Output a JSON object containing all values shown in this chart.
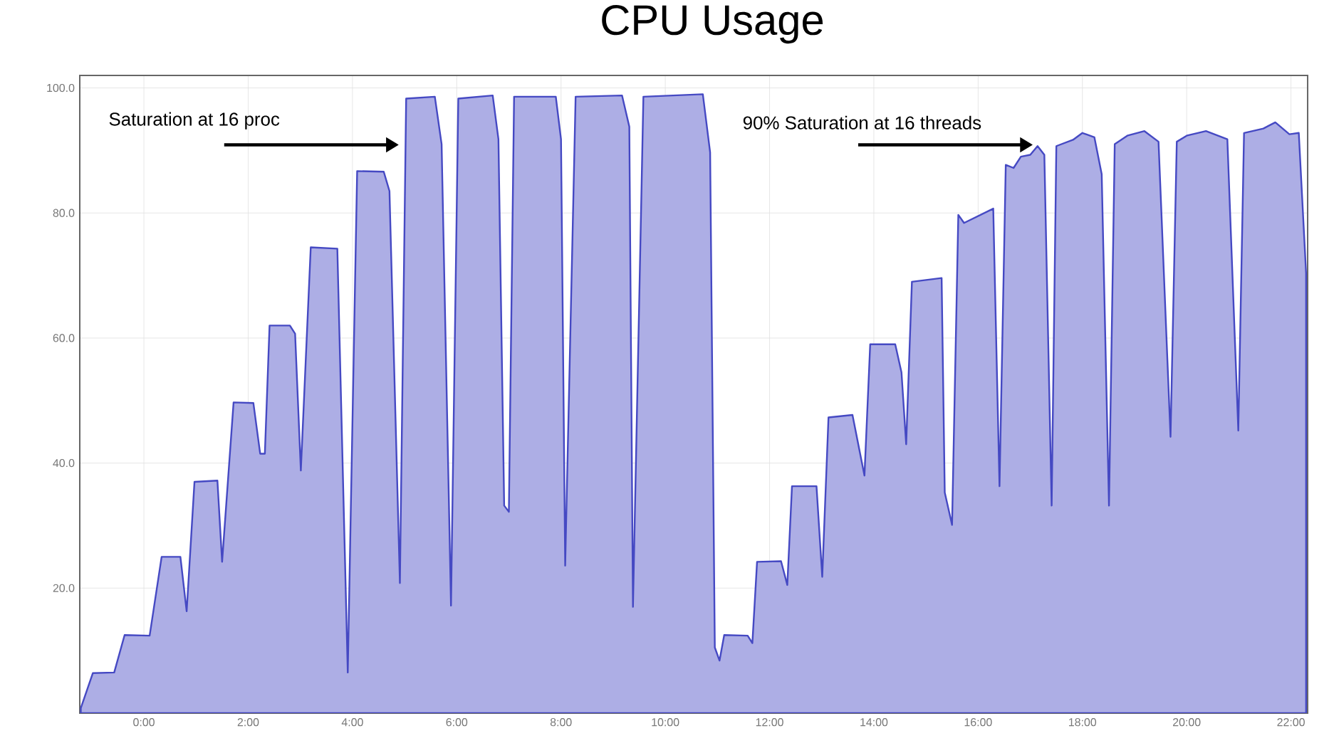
{
  "chart_data": {
    "type": "area",
    "title": "CPU Usage",
    "x": [
      -1.21,
      -0.98,
      -0.57,
      -0.37,
      0.11,
      0.34,
      0.7,
      0.82,
      0.97,
      1.41,
      1.5,
      1.72,
      2.1,
      2.23,
      2.32,
      2.41,
      2.8,
      2.9,
      3.01,
      3.2,
      3.71,
      3.91,
      4.09,
      4.6,
      4.71,
      4.91,
      5.03,
      5.58,
      5.71,
      5.89,
      6.03,
      6.69,
      6.8,
      6.91,
      7.0,
      7.1,
      7.9,
      8.0,
      8.08,
      8.28,
      9.17,
      9.31,
      9.38,
      9.58,
      10.72,
      10.86,
      10.95,
      11.04,
      11.13,
      11.58,
      11.67,
      11.76,
      12.22,
      12.34,
      12.43,
      12.9,
      13.01,
      13.13,
      13.59,
      13.82,
      13.93,
      14.41,
      14.53,
      14.62,
      14.73,
      15.3,
      15.36,
      15.5,
      15.62,
      15.73,
      16.29,
      16.41,
      16.53,
      16.68,
      16.82,
      17.0,
      17.14,
      17.27,
      17.41,
      17.5,
      17.82,
      18.0,
      18.23,
      18.37,
      18.51,
      18.62,
      18.87,
      19.19,
      19.46,
      19.69,
      19.81,
      20.01,
      20.37,
      20.78,
      20.99,
      21.1,
      21.47,
      21.7,
      21.97,
      22.15,
      22.29
    ],
    "series": [
      {
        "color": "#adaee5",
        "values": [
          0.8,
          6.4,
          6.5,
          12.5,
          12.4,
          25.0,
          25.0,
          16.3,
          37.0,
          37.2,
          24.2,
          49.7,
          49.6,
          41.5,
          41.5,
          62.0,
          62.0,
          60.7,
          38.8,
          74.5,
          74.3,
          6.5,
          86.7,
          86.6,
          83.5,
          20.8,
          98.3,
          98.6,
          91.0,
          17.2,
          98.3,
          98.8,
          91.8,
          33.2,
          32.2,
          98.6,
          98.6,
          91.8,
          23.6,
          98.6,
          98.8,
          93.8,
          17.0,
          98.6,
          99.0,
          89.7,
          10.5,
          8.4,
          12.5,
          12.4,
          11.2,
          24.2,
          24.3,
          20.5,
          36.3,
          36.3,
          21.8,
          47.3,
          47.7,
          38.0,
          59.0,
          59.0,
          54.5,
          43.0,
          69.0,
          69.6,
          35.3,
          30.1,
          79.7,
          78.4,
          80.7,
          36.3,
          87.7,
          87.2,
          89.0,
          89.3,
          90.7,
          89.3,
          33.2,
          90.7,
          91.7,
          92.8,
          92.1,
          86.2,
          33.2,
          91.0,
          92.4,
          93.1,
          91.4,
          44.2,
          91.4,
          92.4,
          93.1,
          91.8,
          45.2,
          92.8,
          93.5,
          94.5,
          92.6,
          92.8,
          70.4
        ]
      }
    ],
    "xlim": [
      -1.23,
      22.32
    ],
    "ylim": [
      0,
      102
    ],
    "xticks": [
      {
        "value": 0,
        "label": "0:00"
      },
      {
        "value": 2,
        "label": "2:00"
      },
      {
        "value": 4,
        "label": "4:00"
      },
      {
        "value": 6,
        "label": "6:00"
      },
      {
        "value": 8,
        "label": "8:00"
      },
      {
        "value": 10,
        "label": "10:00"
      },
      {
        "value": 12,
        "label": "12:00"
      },
      {
        "value": 14,
        "label": "14:00"
      },
      {
        "value": 16,
        "label": "16:00"
      },
      {
        "value": 18,
        "label": "18:00"
      },
      {
        "value": 20,
        "label": "20:00"
      },
      {
        "value": 22,
        "label": "22:00"
      }
    ],
    "yticks": [
      {
        "value": 20,
        "label": "20.0"
      },
      {
        "value": 40,
        "label": "40.0"
      },
      {
        "value": 60,
        "label": "60.0"
      },
      {
        "value": 80,
        "label": "80.0"
      },
      {
        "value": 100,
        "label": "100.0"
      }
    ],
    "grid": true,
    "annotations": [
      {
        "text": "Saturation at 16 proc",
        "x": 4.89,
        "y": 90.9
      },
      {
        "text": "90% Saturation at 16 threads",
        "x": 17.05,
        "y": 90.9
      }
    ]
  }
}
